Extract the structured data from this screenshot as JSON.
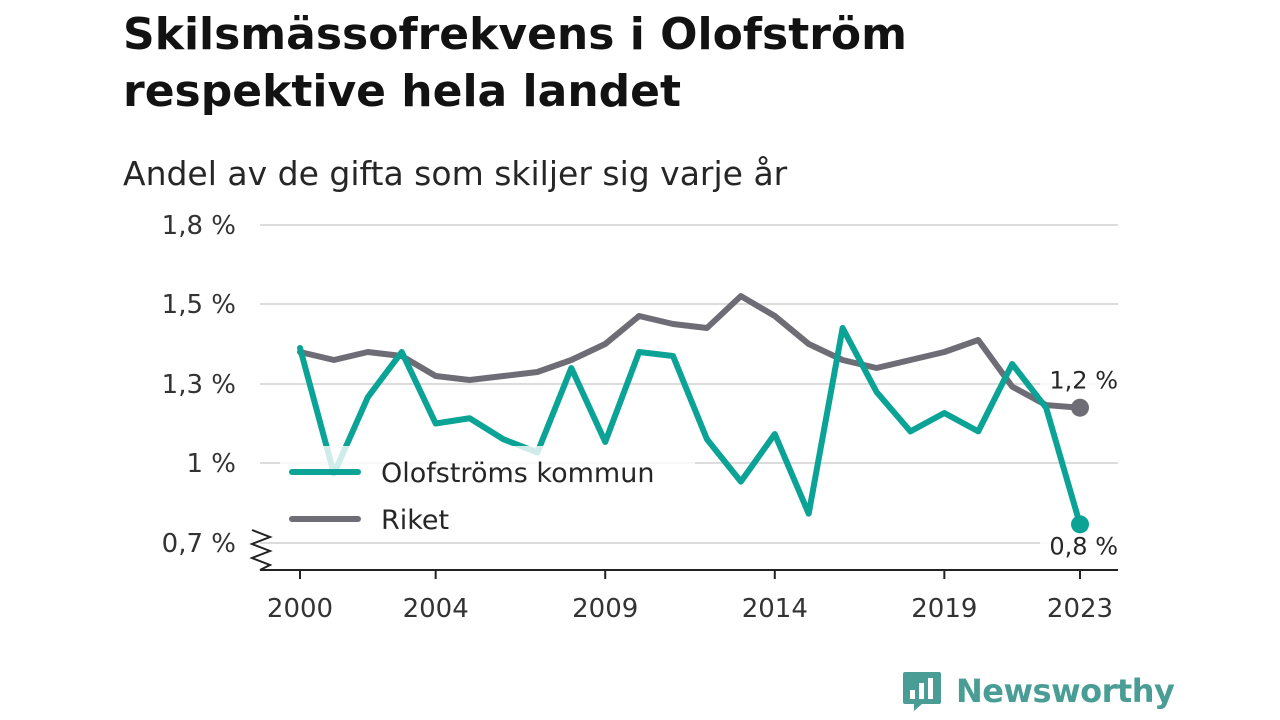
{
  "title": "Skilsmässofrekvens i Olofström respektive hela landet",
  "subtitle": "Andel av de gifta som skiljer sig varje år",
  "brand": "Newsworthy",
  "colors": {
    "olofstrom": "#0aa396",
    "riket": "#6e6d75",
    "grid": "#dcdcdc",
    "brand": "#4a9d95"
  },
  "icons": {
    "brand_logo": "bar-chart-speech-bubble-icon",
    "axis_break": "zigzag-icon"
  },
  "chart_data": {
    "type": "line",
    "title": "Skilsmässofrekvens i Olofström respektive hela landet",
    "subtitle": "Andel av de gifta som skiljer sig varje år",
    "xlabel": "",
    "ylabel": "",
    "ylim": [
      0.6,
      1.8
    ],
    "y_ticks": [
      {
        "value": 0.7,
        "label": "0,7 %"
      },
      {
        "value": 1.0,
        "label": "1 %"
      },
      {
        "value": 1.3,
        "label": "1,3 %"
      },
      {
        "value": 1.5,
        "label": "1,5 %"
      },
      {
        "value": 1.8,
        "label": "1,8 %"
      }
    ],
    "x_ticks": [
      2000,
      2004,
      2009,
      2014,
      2019,
      2023
    ],
    "grid": true,
    "legend_position": "lower-left",
    "x": [
      2000,
      2001,
      2002,
      2003,
      2004,
      2005,
      2006,
      2007,
      2008,
      2009,
      2010,
      2011,
      2012,
      2013,
      2014,
      2015,
      2016,
      2017,
      2018,
      2019,
      2020,
      2021,
      2022,
      2023
    ],
    "series": [
      {
        "name": "Olofströms kommun",
        "color": "#0aa396",
        "values": [
          1.39,
          0.96,
          1.25,
          1.38,
          1.15,
          1.17,
          1.09,
          1.04,
          1.34,
          1.08,
          1.38,
          1.37,
          1.09,
          0.93,
          1.11,
          0.81,
          1.44,
          1.27,
          1.12,
          1.19,
          1.12,
          1.35,
          1.21,
          0.77
        ]
      },
      {
        "name": "Riket",
        "color": "#6e6d75",
        "values": [
          1.38,
          1.36,
          1.38,
          1.37,
          1.32,
          1.31,
          1.32,
          1.33,
          1.36,
          1.4,
          1.47,
          1.45,
          1.44,
          1.53,
          1.47,
          1.4,
          1.36,
          1.34,
          1.36,
          1.38,
          1.41,
          1.29,
          1.22,
          1.21
        ]
      }
    ],
    "end_labels": [
      {
        "series": "Riket",
        "label": "1,2 %"
      },
      {
        "series": "Olofströms kommun",
        "label": "0,8 %"
      }
    ]
  }
}
